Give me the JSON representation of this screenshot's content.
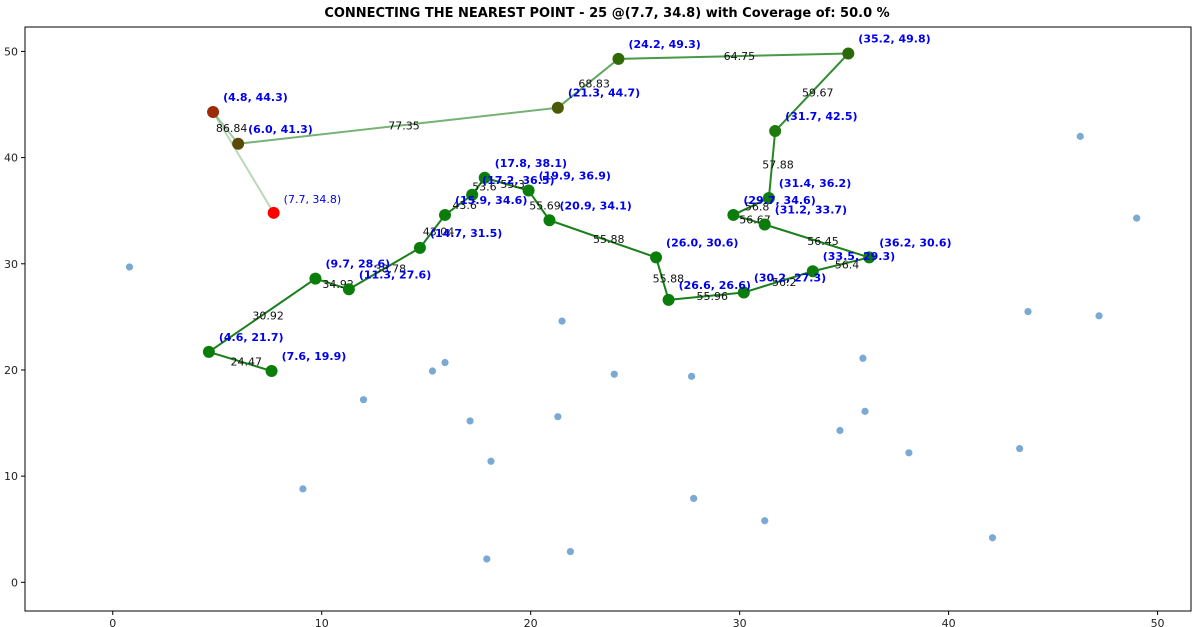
{
  "chart_data": {
    "type": "scatter",
    "title": "CONNECTING THE NEAREST POINT - 25 @(7.7, 34.8) with Coverage of: 50.0 %",
    "xlabel": "",
    "ylabel": "",
    "xlim": [
      -4.2,
      51.6
    ],
    "ylim": [
      -2.7,
      52.3
    ],
    "x_ticks": [
      "0",
      "10",
      "20",
      "30",
      "40",
      "50"
    ],
    "y_ticks": [
      "0",
      "10",
      "20",
      "30",
      "40",
      "50"
    ],
    "grid": false,
    "colors": {
      "path_line": "#1a7f1a",
      "path_marker": "#0b7d0b",
      "start_point": "#ff0000",
      "unvisited": "#7aaad3",
      "coord_label": "#0000ee"
    },
    "start_point": {
      "x": 7.7,
      "y": 34.8,
      "label": "(7.7, 34.8)"
    },
    "path": [
      {
        "x": 4.8,
        "y": 44.3,
        "label": "(4.8, 44.3)",
        "color": "#9b2a07"
      },
      {
        "x": 6.0,
        "y": 41.3,
        "label": "(6.0, 41.3)",
        "color": "#5a4a07"
      },
      {
        "x": 21.3,
        "y": 44.7,
        "label": "(21.3, 44.7)",
        "color": "#4a5a07"
      },
      {
        "x": 24.2,
        "y": 49.3,
        "label": "(24.2, 49.3)",
        "color": "#2f6a07"
      },
      {
        "x": 35.2,
        "y": 49.8,
        "label": "(35.2, 49.8)",
        "color": "#2a6a0a"
      },
      {
        "x": 31.7,
        "y": 42.5,
        "label": "(31.7, 42.5)",
        "color": "#1e7a0a"
      },
      {
        "x": 31.4,
        "y": 36.2,
        "label": "(31.4, 36.2)",
        "color": "#0f7d0b"
      },
      {
        "x": 29.7,
        "y": 34.6,
        "label": "(29.7, 34.6)",
        "color": "#0b7d0b"
      },
      {
        "x": 31.2,
        "y": 33.7,
        "label": "(31.2, 33.7)",
        "color": "#0b7d0b"
      },
      {
        "x": 36.2,
        "y": 30.6,
        "label": "(36.2, 30.6)",
        "color": "#0b7d0b"
      },
      {
        "x": 33.5,
        "y": 29.3,
        "label": "(33.5, 29.3)",
        "color": "#0b7d0b"
      },
      {
        "x": 30.2,
        "y": 27.3,
        "label": "(30.2, 27.3)",
        "color": "#0b7d0b"
      },
      {
        "x": 26.6,
        "y": 26.6,
        "label": "(26.6, 26.6)",
        "color": "#0b7d0b"
      },
      {
        "x": 26.0,
        "y": 30.6,
        "label": "(26.0, 30.6)",
        "color": "#0b7d0b"
      },
      {
        "x": 20.9,
        "y": 34.1,
        "label": "(20.9, 34.1)",
        "color": "#0b7d0b"
      },
      {
        "x": 19.9,
        "y": 36.9,
        "label": "(19.9, 36.9)",
        "color": "#0b7d0b"
      },
      {
        "x": 17.8,
        "y": 38.1,
        "label": "(17.8, 38.1)",
        "color": "#0b7d0b"
      },
      {
        "x": 17.2,
        "y": 36.5,
        "label": "(17.2, 36.5)",
        "color": "#0b7d0b"
      },
      {
        "x": 15.9,
        "y": 34.6,
        "label": "(15.9, 34.6)",
        "color": "#0b7d0b"
      },
      {
        "x": 14.7,
        "y": 31.5,
        "label": "(14.7, 31.5)",
        "color": "#0b7d0b"
      },
      {
        "x": 11.3,
        "y": 27.6,
        "label": "(11.3, 27.6)",
        "color": "#0b7d0b"
      },
      {
        "x": 9.7,
        "y": 28.6,
        "label": "(9.7, 28.6)",
        "color": "#0b7d0b"
      },
      {
        "x": 4.6,
        "y": 21.7,
        "label": "(4.6, 21.7)",
        "color": "#0b7d0b"
      },
      {
        "x": 7.6,
        "y": 19.9,
        "label": "(7.6, 19.9)",
        "color": "#0b7d0b"
      }
    ],
    "segments": [
      {
        "from": [
          7.7,
          34.8
        ],
        "to": [
          4.8,
          44.3
        ],
        "label": "",
        "opacity": 0.3
      },
      {
        "from": [
          4.8,
          44.3
        ],
        "to": [
          6.0,
          41.3
        ],
        "label": "86.84",
        "opacity": 0.4
      },
      {
        "from": [
          6.0,
          41.3
        ],
        "to": [
          21.3,
          44.7
        ],
        "label": "77.35",
        "opacity": 0.6
      },
      {
        "from": [
          21.3,
          44.7
        ],
        "to": [
          24.2,
          49.3
        ],
        "label": "68.83",
        "opacity": 0.7
      },
      {
        "from": [
          24.2,
          49.3
        ],
        "to": [
          35.2,
          49.8
        ],
        "label": "64.75",
        "opacity": 0.8
      },
      {
        "from": [
          35.2,
          49.8
        ],
        "to": [
          31.7,
          42.5
        ],
        "label": "59.67",
        "opacity": 0.9
      },
      {
        "from": [
          31.7,
          42.5
        ],
        "to": [
          31.4,
          36.2
        ],
        "label": "57.88",
        "opacity": 0.95
      },
      {
        "from": [
          31.4,
          36.2
        ],
        "to": [
          29.7,
          34.6
        ],
        "label": "56.8",
        "opacity": 1
      },
      {
        "from": [
          29.7,
          34.6
        ],
        "to": [
          31.2,
          33.7
        ],
        "label": "56.67",
        "opacity": 1
      },
      {
        "from": [
          31.2,
          33.7
        ],
        "to": [
          36.2,
          30.6
        ],
        "label": "56.45",
        "opacity": 1
      },
      {
        "from": [
          36.2,
          30.6
        ],
        "to": [
          33.5,
          29.3
        ],
        "label": "56.4",
        "opacity": 1
      },
      {
        "from": [
          33.5,
          29.3
        ],
        "to": [
          30.2,
          27.3
        ],
        "label": "56.2",
        "opacity": 1
      },
      {
        "from": [
          30.2,
          27.3
        ],
        "to": [
          26.6,
          26.6
        ],
        "label": "55.96",
        "opacity": 1
      },
      {
        "from": [
          26.6,
          26.6
        ],
        "to": [
          26.0,
          30.6
        ],
        "label": "55.88",
        "opacity": 1
      },
      {
        "from": [
          26.0,
          30.6
        ],
        "to": [
          20.9,
          34.1
        ],
        "label": "55.88",
        "opacity": 1
      },
      {
        "from": [
          20.9,
          34.1
        ],
        "to": [
          19.9,
          36.9
        ],
        "label": "55.69",
        "opacity": 1
      },
      {
        "from": [
          19.9,
          36.9
        ],
        "to": [
          17.8,
          38.1
        ],
        "label": "55.3",
        "opacity": 1
      },
      {
        "from": [
          17.8,
          38.1
        ],
        "to": [
          17.2,
          36.5
        ],
        "label": "53.6",
        "opacity": 1
      },
      {
        "from": [
          17.2,
          36.5
        ],
        "to": [
          15.9,
          34.6
        ],
        "label": "43.6",
        "opacity": 1
      },
      {
        "from": [
          15.9,
          34.6
        ],
        "to": [
          14.7,
          31.5
        ],
        "label": "43.04",
        "opacity": 1
      },
      {
        "from": [
          14.7,
          31.5
        ],
        "to": [
          11.3,
          27.6
        ],
        "label": "38.78",
        "opacity": 1
      },
      {
        "from": [
          11.3,
          27.6
        ],
        "to": [
          9.7,
          28.6
        ],
        "label": "34.92",
        "opacity": 1
      },
      {
        "from": [
          9.7,
          28.6
        ],
        "to": [
          4.6,
          21.7
        ],
        "label": "30.92",
        "opacity": 1
      },
      {
        "from": [
          4.6,
          21.7
        ],
        "to": [
          7.6,
          19.9
        ],
        "label": "24.47",
        "opacity": 1
      }
    ],
    "unvisited": [
      [
        0.8,
        29.7
      ],
      [
        9.1,
        8.8
      ],
      [
        12.0,
        17.2
      ],
      [
        15.3,
        19.9
      ],
      [
        15.9,
        20.7
      ],
      [
        17.1,
        15.2
      ],
      [
        18.1,
        11.4
      ],
      [
        17.9,
        2.2
      ],
      [
        21.3,
        15.6
      ],
      [
        21.5,
        24.6
      ],
      [
        21.9,
        2.9
      ],
      [
        24.0,
        19.6
      ],
      [
        27.7,
        19.4
      ],
      [
        27.8,
        7.9
      ],
      [
        31.2,
        5.8
      ],
      [
        34.8,
        14.3
      ],
      [
        35.9,
        21.1
      ],
      [
        36.0,
        16.1
      ],
      [
        38.1,
        12.2
      ],
      [
        42.1,
        4.2
      ],
      [
        43.4,
        12.6
      ],
      [
        43.8,
        25.5
      ],
      [
        46.3,
        42.0
      ],
      [
        47.2,
        25.1
      ],
      [
        49.0,
        34.3
      ]
    ]
  }
}
